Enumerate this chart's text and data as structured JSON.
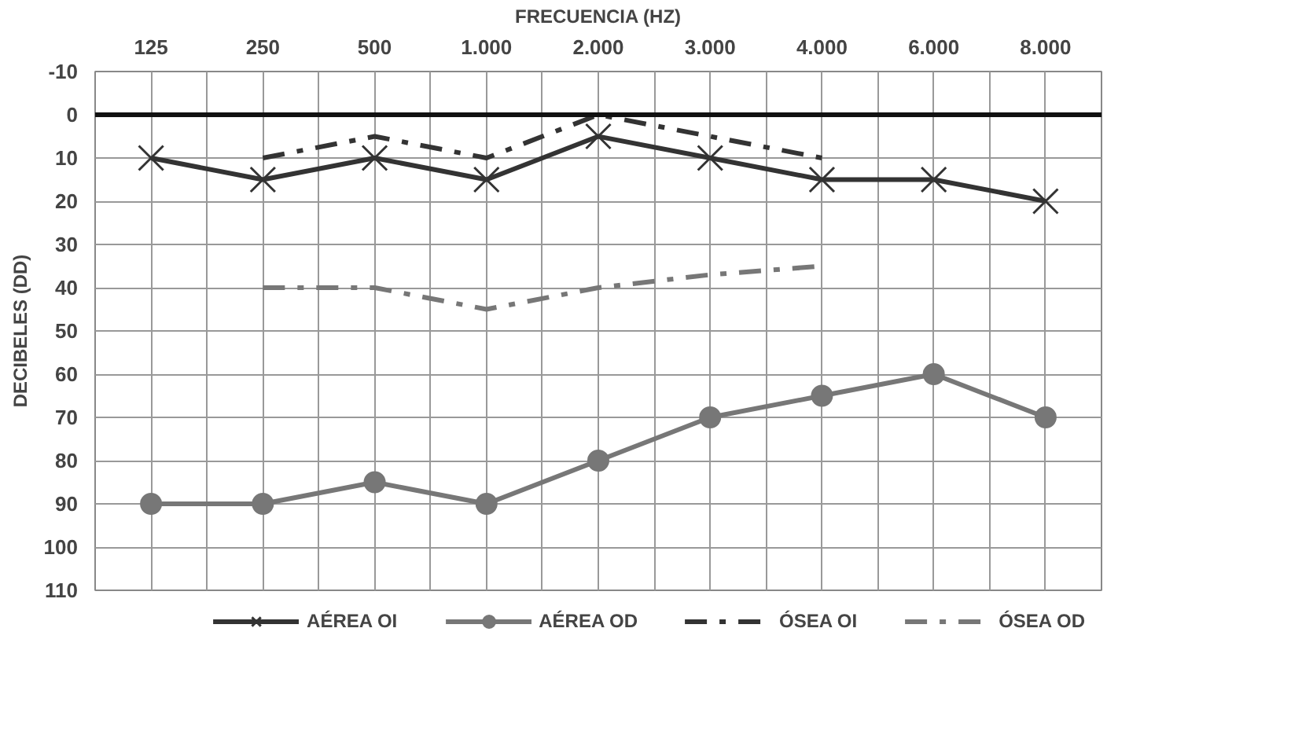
{
  "chart_data": {
    "type": "line",
    "xlabel": "FRECUENCIA (HZ)",
    "ylabel": "DECIBELES (DD)",
    "categories": [
      "125",
      "250",
      "500",
      "1.000",
      "2.000",
      "3.000",
      "4.000",
      "6.000",
      "8.000"
    ],
    "ylim": [
      110,
      -10
    ],
    "yticks": [
      -10,
      0,
      10,
      20,
      30,
      40,
      50,
      60,
      70,
      80,
      90,
      100,
      110
    ],
    "grid": true,
    "legend": "bottom",
    "ref_lines": [
      {
        "axis": "y",
        "value": 0,
        "color": "#111111"
      }
    ],
    "series": [
      {
        "name": "AÉREA OI",
        "color": "#333333",
        "marker": "cross",
        "line_style": "solid",
        "values": [
          10,
          15,
          10,
          15,
          5,
          10,
          15,
          15,
          20
        ]
      },
      {
        "name": "AÉREA OD",
        "color": "#777777",
        "marker": "circle",
        "line_style": "solid",
        "values": [
          90,
          90,
          85,
          90,
          80,
          70,
          65,
          60,
          70
        ]
      },
      {
        "name": "ÓSEA OI",
        "color": "#333333",
        "marker": "none",
        "line_style": "dashed",
        "values": [
          null,
          10,
          5,
          10,
          0,
          5,
          10,
          null,
          null
        ]
      },
      {
        "name": "ÓSEA OD",
        "color": "#777777",
        "marker": "none",
        "line_style": "dashed",
        "values": [
          null,
          40,
          40,
          45,
          40,
          37,
          35,
          null,
          null
        ]
      }
    ]
  }
}
